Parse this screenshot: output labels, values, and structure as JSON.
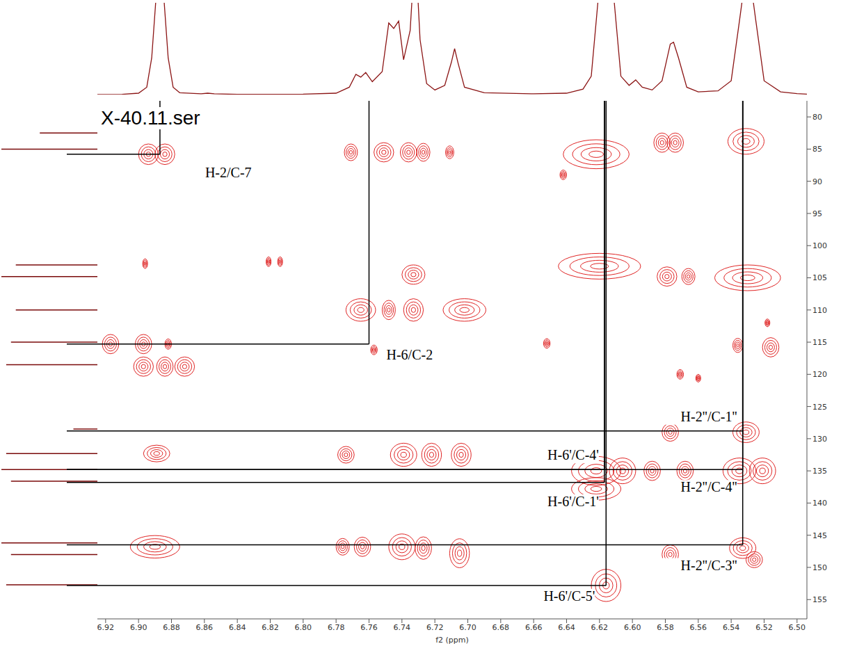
{
  "chart_data": {
    "type": "contour",
    "title": "X-40.11.ser",
    "x_label": "f2 (ppm)",
    "color": "#e02424",
    "xlim": [
      6.925,
      6.494
    ],
    "xticks": [
      6.92,
      {
        "value": 6.9,
        "label": "6.90"
      },
      6.88,
      6.86,
      6.84,
      6.82,
      {
        "value": 6.8,
        "label": "6.80"
      },
      6.78,
      6.76,
      6.74,
      6.72,
      {
        "value": 6.7,
        "label": "6.70"
      },
      6.68,
      6.66,
      6.64,
      6.62,
      {
        "value": 6.6,
        "label": "6.60"
      },
      6.58,
      6.56,
      6.54,
      6.52,
      {
        "value": 6.5,
        "label": "6.50"
      }
    ],
    "ylim": [
      77.5,
      158
    ],
    "yticks": [
      80,
      85,
      90,
      95,
      100,
      105,
      110,
      115,
      120,
      125,
      130,
      135,
      140,
      145,
      150,
      155
    ],
    "peaks": [
      {
        "x": 6.894,
        "y": 85.8,
        "dx": 0.012,
        "dy": 3.2
      },
      {
        "x": 6.884,
        "y": 85.8,
        "dx": 0.012,
        "dy": 3.2
      },
      {
        "x": 6.771,
        "y": 85.5,
        "dx": 0.008,
        "dy": 2.6
      },
      {
        "x": 6.751,
        "y": 85.5,
        "dx": 0.012,
        "dy": 3
      },
      {
        "x": 6.736,
        "y": 85.5,
        "dx": 0.01,
        "dy": 3
      },
      {
        "x": 6.727,
        "y": 85.5,
        "dx": 0.008,
        "dy": 2.8
      },
      {
        "x": 6.711,
        "y": 85.5,
        "dx": 0.005,
        "dy": 2
      },
      {
        "x": 6.622,
        "y": 85.8,
        "dx": 0.04,
        "dy": 4.5
      },
      {
        "x": 6.582,
        "y": 84,
        "dx": 0.01,
        "dy": 3
      },
      {
        "x": 6.574,
        "y": 84,
        "dx": 0.01,
        "dy": 3
      },
      {
        "x": 6.531,
        "y": 83.8,
        "dx": 0.022,
        "dy": 4
      },
      {
        "x": 6.642,
        "y": 89,
        "dx": 0.004,
        "dy": 1.5
      },
      {
        "x": 6.896,
        "y": 102.8,
        "dx": 0.003,
        "dy": 1.5
      },
      {
        "x": 6.821,
        "y": 102.5,
        "dx": 0.003,
        "dy": 1.5
      },
      {
        "x": 6.814,
        "y": 102.5,
        "dx": 0.003,
        "dy": 1.5
      },
      {
        "x": 6.733,
        "y": 104.5,
        "dx": 0.014,
        "dy": 3
      },
      {
        "x": 6.62,
        "y": 103.2,
        "dx": 0.05,
        "dy": 4
      },
      {
        "x": 6.579,
        "y": 104.8,
        "dx": 0.012,
        "dy": 3
      },
      {
        "x": 6.566,
        "y": 104.8,
        "dx": 0.008,
        "dy": 2.5
      },
      {
        "x": 6.53,
        "y": 105,
        "dx": 0.04,
        "dy": 4
      },
      {
        "x": 6.765,
        "y": 110,
        "dx": 0.018,
        "dy": 3.5
      },
      {
        "x": 6.748,
        "y": 110,
        "dx": 0.008,
        "dy": 3
      },
      {
        "x": 6.733,
        "y": 110,
        "dx": 0.012,
        "dy": 3.5
      },
      {
        "x": 6.702,
        "y": 110,
        "dx": 0.026,
        "dy": 3.5
      },
      {
        "x": 6.917,
        "y": 115.3,
        "dx": 0.01,
        "dy": 3
      },
      {
        "x": 6.897,
        "y": 115.3,
        "dx": 0.01,
        "dy": 3
      },
      {
        "x": 6.882,
        "y": 115.3,
        "dx": 0.004,
        "dy": 1.6
      },
      {
        "x": 6.757,
        "y": 116.2,
        "dx": 0.004,
        "dy": 1.5
      },
      {
        "x": 6.652,
        "y": 115.2,
        "dx": 0.004,
        "dy": 1.5
      },
      {
        "x": 6.536,
        "y": 115.5,
        "dx": 0.006,
        "dy": 2.2
      },
      {
        "x": 6.516,
        "y": 115.8,
        "dx": 0.01,
        "dy": 3
      },
      {
        "x": 6.518,
        "y": 112,
        "dx": 0.003,
        "dy": 1.2
      },
      {
        "x": 6.897,
        "y": 118.8,
        "dx": 0.012,
        "dy": 3
      },
      {
        "x": 6.884,
        "y": 118.8,
        "dx": 0.01,
        "dy": 3
      },
      {
        "x": 6.872,
        "y": 118.8,
        "dx": 0.012,
        "dy": 3
      },
      {
        "x": 6.571,
        "y": 120,
        "dx": 0.004,
        "dy": 1.5
      },
      {
        "x": 6.56,
        "y": 120.6,
        "dx": 0.003,
        "dy": 1.2
      },
      {
        "x": 6.577,
        "y": 129,
        "dx": 0.01,
        "dy": 2.8
      },
      {
        "x": 6.531,
        "y": 129,
        "dx": 0.016,
        "dy": 3.2
      },
      {
        "x": 6.889,
        "y": 132.3,
        "dx": 0.016,
        "dy": 2.6
      },
      {
        "x": 6.774,
        "y": 132.5,
        "dx": 0.01,
        "dy": 2.6
      },
      {
        "x": 6.739,
        "y": 132.5,
        "dx": 0.016,
        "dy": 3.6
      },
      {
        "x": 6.722,
        "y": 132.5,
        "dx": 0.012,
        "dy": 3.6
      },
      {
        "x": 6.704,
        "y": 132.5,
        "dx": 0.012,
        "dy": 3.6
      },
      {
        "x": 6.622,
        "y": 135,
        "dx": 0.03,
        "dy": 4.5
      },
      {
        "x": 6.606,
        "y": 135,
        "dx": 0.016,
        "dy": 4
      },
      {
        "x": 6.588,
        "y": 135,
        "dx": 0.01,
        "dy": 3
      },
      {
        "x": 6.568,
        "y": 135,
        "dx": 0.01,
        "dy": 3
      },
      {
        "x": 6.535,
        "y": 135,
        "dx": 0.02,
        "dy": 4
      },
      {
        "x": 6.521,
        "y": 135,
        "dx": 0.016,
        "dy": 4
      },
      {
        "x": 6.622,
        "y": 137.8,
        "dx": 0.03,
        "dy": 3.5
      },
      {
        "x": 6.89,
        "y": 146.8,
        "dx": 0.03,
        "dy": 3.5
      },
      {
        "x": 6.776,
        "y": 146.8,
        "dx": 0.008,
        "dy": 2.6
      },
      {
        "x": 6.764,
        "y": 146.8,
        "dx": 0.01,
        "dy": 3
      },
      {
        "x": 6.74,
        "y": 146.8,
        "dx": 0.016,
        "dy": 4
      },
      {
        "x": 6.727,
        "y": 147,
        "dx": 0.01,
        "dy": 3.5
      },
      {
        "x": 6.705,
        "y": 147.8,
        "dx": 0.012,
        "dy": 4.5
      },
      {
        "x": 6.577,
        "y": 148,
        "dx": 0.01,
        "dy": 3
      },
      {
        "x": 6.533,
        "y": 147,
        "dx": 0.016,
        "dy": 3.2
      },
      {
        "x": 6.526,
        "y": 148.8,
        "dx": 0.01,
        "dy": 2.5
      },
      {
        "x": 6.616,
        "y": 152.8,
        "dx": 0.018,
        "dy": 5
      }
    ],
    "proton_spectrum": {
      "color": "#8b1414",
      "ylim": [
        0,
        100
      ],
      "x": [
        6.925,
        6.91,
        6.9,
        6.895,
        6.892,
        6.889,
        6.887,
        6.885,
        6.882,
        6.879,
        6.875,
        6.862,
        6.858,
        6.854,
        6.84,
        6.8,
        6.78,
        6.772,
        6.768,
        6.765,
        6.762,
        6.758,
        6.752,
        6.748,
        6.745,
        6.742,
        6.739,
        6.735,
        6.733,
        6.731,
        6.729,
        6.725,
        6.72,
        6.714,
        6.71,
        6.708,
        6.706,
        6.702,
        6.69,
        6.66,
        6.64,
        6.63,
        6.625,
        6.621,
        6.618,
        6.614,
        6.611,
        6.607,
        6.602,
        6.598,
        6.594,
        6.588,
        6.582,
        6.577,
        6.575,
        6.572,
        6.567,
        6.56,
        6.548,
        6.54,
        6.535,
        6.532,
        6.53,
        6.528,
        6.525,
        6.52,
        6.51,
        6.5,
        6.494
      ],
      "values": [
        0,
        0.3,
        1.5,
        8,
        40,
        115,
        108,
        115,
        40,
        8,
        2,
        0.8,
        1.5,
        0.8,
        0.3,
        0.5,
        1.5,
        8,
        22,
        19,
        24,
        14,
        25,
        78,
        72,
        80,
        38,
        70,
        130,
        130,
        60,
        12,
        5,
        10,
        35,
        50,
        35,
        8,
        2,
        0.8,
        1.5,
        6,
        20,
        100,
        130,
        130,
        100,
        20,
        10,
        16,
        8,
        5,
        15,
        55,
        57,
        40,
        8,
        3,
        4,
        15,
        80,
        120,
        108,
        120,
        80,
        15,
        3,
        1,
        0.5
      ]
    },
    "carbon_spectrum": {
      "color": "#7a0a0a",
      "xlim": [
        100,
        0
      ],
      "y": [
        82.5,
        85,
        103,
        104.8,
        110,
        115,
        118.5,
        128.5,
        132.3,
        134.8,
        136.6,
        146.2,
        148,
        152.7
      ],
      "values": [
        60,
        100,
        85,
        100,
        85,
        90,
        95,
        25,
        95,
        100,
        90,
        100,
        90,
        95
      ]
    },
    "annotations": [
      {
        "text": "H-2/C-7",
        "x": 6.887,
        "y": 85.8
      },
      {
        "text": "H-6/C-2",
        "x": 6.76,
        "y": 115.3
      },
      {
        "text": "H-2''/C-1''",
        "x": 6.533,
        "y": 128.8
      },
      {
        "text": "H-6'/C-4'",
        "x": 6.617,
        "y": 134.8
      },
      {
        "text": "H-2''/C-4''",
        "x": 6.533,
        "y": 134.8
      },
      {
        "text": "H-6'/C-1'",
        "x": 6.617,
        "y": 136.8
      },
      {
        "text": "H-2''/C-3''",
        "x": 6.533,
        "y": 146.5
      },
      {
        "text": "H-6'/C-5'",
        "x": 6.616,
        "y": 152.8
      }
    ]
  }
}
